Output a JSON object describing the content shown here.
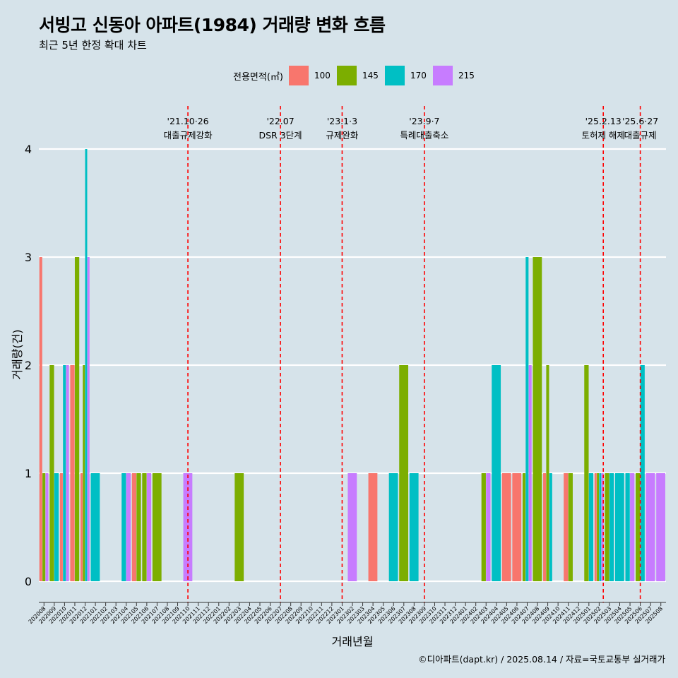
{
  "title": "서빙고 신동아 아파트(1984) 거래량 변화 흐름",
  "subtitle": "최근 5년 한정 확대 차트",
  "caption": "©디아파트(dapt.kr) / 2025.08.14 / 자료=국토교통부 실거래가",
  "legend": {
    "title": "전용면적(㎡)",
    "items": [
      {
        "label": "100",
        "color": "#f8766d"
      },
      {
        "label": "145",
        "color": "#7cae00"
      },
      {
        "label": "170",
        "color": "#00bfc4"
      },
      {
        "label": "215",
        "color": "#c77cff"
      }
    ]
  },
  "chart_data": {
    "type": "bar",
    "xlabel": "거래년월",
    "ylabel": "거래량(건)",
    "ylim": [
      -0.2,
      4.4
    ],
    "yticks": [
      0,
      1,
      2,
      3,
      4
    ],
    "categories": [
      "202008",
      "202009",
      "202010",
      "202011",
      "202012",
      "202101",
      "202102",
      "202103",
      "202104",
      "202105",
      "202106",
      "202107",
      "202108",
      "202109",
      "202110",
      "202111",
      "202112",
      "202201",
      "202202",
      "202203",
      "202204",
      "202205",
      "202206",
      "202207",
      "202208",
      "202209",
      "202210",
      "202211",
      "202212",
      "202301",
      "202302",
      "202303",
      "202304",
      "202305",
      "202306",
      "202307",
      "202308",
      "202309",
      "202310",
      "202311",
      "202312",
      "202401",
      "202402",
      "202403",
      "202404",
      "202405",
      "202406",
      "202407",
      "202408",
      "202409",
      "202410",
      "202411",
      "202412",
      "202501",
      "202502",
      "202503",
      "202504",
      "202505",
      "202506",
      "202507",
      "202508"
    ],
    "series": [
      {
        "name": "100",
        "color": "#f8766d",
        "values": [
          3,
          0,
          1,
          2,
          1,
          0,
          0,
          0,
          0,
          1,
          0,
          0,
          0,
          0,
          0,
          0,
          0,
          0,
          0,
          0,
          0,
          0,
          0,
          0,
          0,
          0,
          0,
          0,
          0,
          0,
          0,
          0,
          1,
          0,
          0,
          0,
          0,
          0,
          0,
          0,
          0,
          0,
          0,
          0,
          0,
          1,
          1,
          0,
          0,
          1,
          0,
          1,
          0,
          0,
          1,
          0,
          0,
          0,
          0,
          0,
          0
        ]
      },
      {
        "name": "145",
        "color": "#7cae00",
        "values": [
          1,
          2,
          0,
          3,
          2,
          0,
          0,
          0,
          0,
          1,
          1,
          1,
          0,
          0,
          0,
          0,
          0,
          0,
          0,
          1,
          0,
          0,
          0,
          0,
          0,
          0,
          0,
          0,
          0,
          0,
          0,
          0,
          0,
          0,
          0,
          2,
          0,
          0,
          0,
          0,
          0,
          0,
          0,
          1,
          0,
          0,
          0,
          1,
          3,
          2,
          0,
          1,
          0,
          2,
          1,
          1,
          0,
          0,
          1,
          0,
          0
        ]
      },
      {
        "name": "170",
        "color": "#00bfc4",
        "values": [
          0,
          1,
          2,
          0,
          4,
          1,
          0,
          0,
          1,
          0,
          0,
          0,
          0,
          0,
          0,
          0,
          0,
          0,
          0,
          0,
          0,
          0,
          0,
          0,
          0,
          0,
          0,
          0,
          0,
          0,
          0,
          0,
          0,
          0,
          1,
          0,
          1,
          0,
          0,
          0,
          0,
          0,
          0,
          0,
          2,
          0,
          0,
          3,
          0,
          1,
          0,
          0,
          0,
          1,
          1,
          1,
          1,
          1,
          2,
          0,
          0
        ]
      },
      {
        "name": "215",
        "color": "#c77cff",
        "values": [
          1,
          0,
          2,
          0,
          3,
          0,
          0,
          0,
          1,
          0,
          1,
          0,
          0,
          0,
          1,
          0,
          0,
          0,
          0,
          0,
          0,
          0,
          0,
          0,
          0,
          0,
          0,
          0,
          0,
          0,
          1,
          0,
          0,
          0,
          0,
          0,
          0,
          0,
          0,
          0,
          0,
          0,
          0,
          1,
          0,
          0,
          0,
          2,
          0,
          0,
          0,
          0,
          0,
          0,
          1,
          0,
          0,
          1,
          0,
          1,
          1
        ]
      }
    ],
    "events": [
      {
        "date": "'21.10·26",
        "label": "대출규제강화",
        "at": "202110",
        "offset": 0
      },
      {
        "date": "'22.07",
        "label": "DSR 3단계",
        "at": "202207",
        "offset": 0
      },
      {
        "date": "'23.1·3",
        "label": "규제완화",
        "at": "202301",
        "offset": 0
      },
      {
        "date": "'23.9·7",
        "label": "특례대출축소",
        "at": "202309",
        "offset": 0
      },
      {
        "date": "'25.2.13",
        "label": "토허제 해제",
        "at": "202502",
        "offset": 0.4
      },
      {
        "date": "'25.6·27",
        "label": "대출규제",
        "at": "202506",
        "offset": 0
      }
    ],
    "grid": true,
    "legend_position": "top"
  }
}
